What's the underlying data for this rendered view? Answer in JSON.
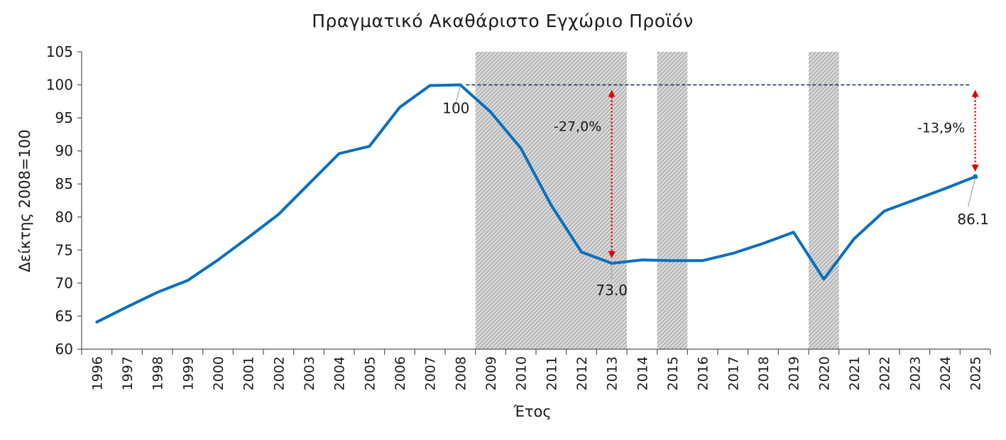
{
  "chart_data": {
    "type": "line",
    "title": "Πραγματικό Ακαθάριστο Εγχώριο Προϊόν",
    "xlabel": "Έτος",
    "ylabel": "Δείκτης 2008=100",
    "ylim": [
      60,
      105
    ],
    "yticks": [
      "60",
      "65",
      "70",
      "75",
      "80",
      "85",
      "90",
      "95",
      "100",
      "105"
    ],
    "categories": [
      "1996",
      "1997",
      "1998",
      "1999",
      "2000",
      "2001",
      "2002",
      "2003",
      "2004",
      "2005",
      "2006",
      "2007",
      "2008",
      "2009",
      "2010",
      "2011",
      "2012",
      "2013",
      "2014",
      "2015",
      "2016",
      "2017",
      "2018",
      "2019",
      "2020",
      "2021",
      "2022",
      "2023",
      "2024",
      "2025"
    ],
    "series": [
      {
        "values": [
          64.1,
          66.4,
          68.6,
          70.4,
          73.5,
          76.9,
          80.4,
          85.0,
          89.6,
          90.7,
          96.6,
          99.9,
          100.0,
          95.9,
          90.4,
          81.8,
          74.7,
          73.0,
          73.5,
          73.4,
          73.4,
          74.5,
          76.0,
          77.7,
          70.6,
          76.7,
          80.9,
          82.6,
          84.3,
          86.1
        ],
        "color": "#0b6fbe"
      }
    ],
    "shaded_periods": [
      [
        "2009",
        "2013"
      ],
      [
        "2015",
        "2015"
      ],
      [
        "2020",
        "2020"
      ]
    ],
    "reference_line": {
      "value": 100,
      "from": "2008",
      "to": "2025",
      "color": "#1f3864",
      "style": "dashed"
    },
    "point_labels": [
      {
        "x": "2008",
        "text": "100"
      },
      {
        "x": "2013",
        "text": "73.0"
      },
      {
        "x": "2025",
        "text": "86.1"
      }
    ],
    "arrows": [
      {
        "x": "2013",
        "from": 100,
        "to": 73.0,
        "label": "-27,0%",
        "color": "#e00000"
      },
      {
        "x": "2025",
        "from": 100,
        "to": 86.1,
        "label": "-13,9%",
        "color": "#e00000"
      }
    ],
    "grid": false,
    "legend": "none"
  }
}
